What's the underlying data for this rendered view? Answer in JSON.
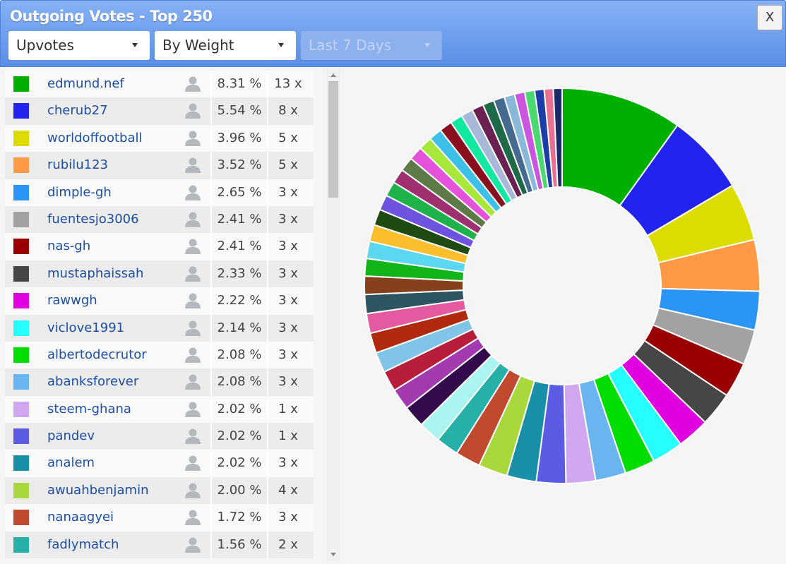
{
  "header": {
    "title": "Outgoing Votes - Top 250",
    "close": "X"
  },
  "controls": [
    {
      "label": "Upvotes",
      "disabled": false
    },
    {
      "label": "By Weight",
      "disabled": false
    },
    {
      "label": "Last 7 Days",
      "disabled": true
    }
  ],
  "table": {
    "rows": [
      {
        "color": "#00b000",
        "name": "edmund.nef",
        "percent": {
          "value": 8.31,
          "label": "8.31 %"
        },
        "count": "13 x"
      },
      {
        "color": "#2323ee",
        "name": "cherub27",
        "percent": {
          "value": 5.54,
          "label": "5.54 %"
        },
        "count": "8 x"
      },
      {
        "color": "#dcdc00",
        "name": "worldoffootball",
        "percent": {
          "value": 3.96,
          "label": "3.96 %"
        },
        "count": "5 x"
      },
      {
        "color": "#ff9945",
        "name": "rubilu123",
        "percent": {
          "value": 3.52,
          "label": "3.52 %"
        },
        "count": "5 x"
      },
      {
        "color": "#2b95f5",
        "name": "dimple-gh",
        "percent": {
          "value": 2.65,
          "label": "2.65 %"
        },
        "count": "3 x"
      },
      {
        "color": "#a2a2a2",
        "name": "fuentesjo3006",
        "percent": {
          "value": 2.41,
          "label": "2.41 %"
        },
        "count": "3 x"
      },
      {
        "color": "#990000",
        "name": "nas-gh",
        "percent": {
          "value": 2.41,
          "label": "2.41 %"
        },
        "count": "3 x"
      },
      {
        "color": "#464646",
        "name": "mustaphaissah",
        "percent": {
          "value": 2.33,
          "label": "2.33 %"
        },
        "count": "3 x"
      },
      {
        "color": "#e000e0",
        "name": "rawwgh",
        "percent": {
          "value": 2.22,
          "label": "2.22 %"
        },
        "count": "3 x"
      },
      {
        "color": "#25ffff",
        "name": "viclove1991",
        "percent": {
          "value": 2.14,
          "label": "2.14 %"
        },
        "count": "3 x"
      },
      {
        "color": "#00dd00",
        "name": "albertodecrutor",
        "percent": {
          "value": 2.08,
          "label": "2.08 %"
        },
        "count": "3 x"
      },
      {
        "color": "#6ab4ef",
        "name": "abanksforever",
        "percent": {
          "value": 2.08,
          "label": "2.08 %"
        },
        "count": "3 x"
      },
      {
        "color": "#d0a8f0",
        "name": "steem-ghana",
        "percent": {
          "value": 2.02,
          "label": "2.02 %"
        },
        "count": "1 x"
      },
      {
        "color": "#5b5be3",
        "name": "pandev",
        "percent": {
          "value": 2.02,
          "label": "2.02 %"
        },
        "count": "1 x"
      },
      {
        "color": "#1a8fa8",
        "name": "analem",
        "percent": {
          "value": 2.02,
          "label": "2.02 %"
        },
        "count": "3 x"
      },
      {
        "color": "#a8d83c",
        "name": "awuahbenjamin",
        "percent": {
          "value": 2.0,
          "label": "2.00 %"
        },
        "count": "4 x"
      },
      {
        "color": "#c04a30",
        "name": "nanaagyei",
        "percent": {
          "value": 1.72,
          "label": "1.72 %"
        },
        "count": "3 x"
      },
      {
        "color": "#26b0a8",
        "name": "fadlymatch",
        "percent": {
          "value": 1.56,
          "label": "1.56 %"
        },
        "count": "2 x"
      }
    ]
  },
  "donut": {
    "type": "pie",
    "values": [
      1.52,
      1.5,
      1.45,
      1.42,
      1.4,
      1.38,
      1.35,
      1.3,
      1.25,
      1.2,
      1.18,
      1.15,
      1.1,
      1.05,
      1.02,
      1.0,
      0.98,
      0.95,
      0.92,
      0.9,
      0.88,
      0.85,
      0.82,
      0.8,
      0.78,
      0.75,
      0.72,
      0.7,
      0.68,
      0.65,
      0.62,
      0.6
    ],
    "colors": [
      "#aaf5f0",
      "#330a4c",
      "#a33ab0",
      "#b81e3c",
      "#80c4e8",
      "#b22a0e",
      "#e35aa1",
      "#2d5561",
      "#87401e",
      "#11b51a",
      "#5bd8f0",
      "#fbbf2e",
      "#1f4a12",
      "#6e52e0",
      "#1fb24a",
      "#9e3070",
      "#5e7a46",
      "#e352d9",
      "#a8e83a",
      "#3cc0e8",
      "#8a1020",
      "#11e8a0",
      "#a8b8d8",
      "#6a2050",
      "#1e6a48",
      "#456a90",
      "#8ab8d8",
      "#cc55e0",
      "#4ad870",
      "#1c3ca8",
      "#e87090",
      "#1a2a6a"
    ]
  }
}
